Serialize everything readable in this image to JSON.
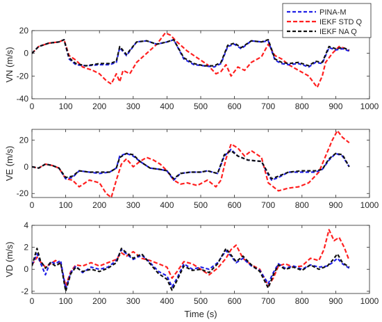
{
  "colors": {
    "pina": "#1f1fe6",
    "ieekf_std": "#ff1f1f",
    "ieekf_na": "#111111"
  },
  "legend": [
    "PINA-M",
    "IEKF STD Q",
    "IEKF NA Q"
  ],
  "chart_data": [
    {
      "type": "line",
      "ylabel": "VN (m/s)",
      "xlabel": "",
      "xlim": [
        0,
        1000
      ],
      "ylim": [
        -40,
        20
      ],
      "xticks": [
        0,
        100,
        200,
        300,
        400,
        500,
        600,
        700,
        800,
        900,
        1000
      ],
      "yticks": [
        -40,
        -20,
        0,
        20
      ],
      "grid": false,
      "legend_position": "top-right",
      "series": [
        {
          "name": "PINA-M",
          "x": [
            0,
            20,
            50,
            80,
            95,
            110,
            130,
            160,
            200,
            230,
            250,
            260,
            280,
            310,
            340,
            370,
            400,
            420,
            450,
            480,
            510,
            540,
            560,
            580,
            600,
            620,
            650,
            680,
            700,
            720,
            740,
            760,
            790,
            820,
            840,
            860,
            880,
            900,
            920,
            940
          ],
          "y": [
            0,
            6,
            9,
            10,
            12,
            -5,
            -10,
            -11,
            -10,
            -10,
            -8,
            5,
            -2,
            10,
            11,
            8,
            10,
            12,
            -5,
            -10,
            -11,
            -12,
            -9,
            6,
            8,
            4,
            11,
            10,
            11,
            -6,
            -9,
            -10,
            -9,
            -12,
            -8,
            -9,
            5,
            3,
            4,
            2
          ]
        },
        {
          "name": "IEKF STD Q",
          "x": [
            0,
            20,
            50,
            80,
            95,
            110,
            130,
            150,
            180,
            200,
            220,
            235,
            250,
            260,
            270,
            290,
            310,
            340,
            370,
            395,
            410,
            430,
            460,
            490,
            520,
            545,
            560,
            575,
            590,
            610,
            630,
            650,
            680,
            700,
            720,
            740,
            760,
            790,
            820,
            845,
            860,
            870,
            890,
            910,
            930,
            940
          ],
          "y": [
            0,
            6,
            9,
            10,
            12,
            -2,
            -6,
            -12,
            -15,
            -18,
            -24,
            -27,
            -18,
            -25,
            -15,
            -18,
            -8,
            0,
            8,
            18,
            16,
            10,
            2,
            -4,
            -10,
            -18,
            -16,
            -10,
            -20,
            -12,
            -15,
            -8,
            -3,
            8,
            -2,
            -5,
            -10,
            -15,
            -20,
            -30,
            -20,
            -8,
            0,
            6,
            4,
            2
          ]
        },
        {
          "name": "IEKF NA Q",
          "x": [
            0,
            20,
            50,
            80,
            95,
            110,
            130,
            160,
            200,
            230,
            250,
            260,
            280,
            310,
            340,
            370,
            400,
            420,
            450,
            480,
            510,
            540,
            560,
            580,
            600,
            620,
            650,
            680,
            700,
            720,
            740,
            760,
            790,
            820,
            840,
            860,
            880,
            900,
            920,
            940
          ],
          "y": [
            0,
            6,
            9,
            10,
            12,
            -4,
            -9,
            -11,
            -9,
            -9,
            -7,
            6,
            -1,
            10,
            11,
            8,
            10,
            12,
            -4,
            -9,
            -11,
            -11,
            -8,
            7,
            9,
            5,
            11,
            10,
            12,
            -5,
            -8,
            -9,
            -8,
            -11,
            -7,
            -8,
            6,
            4,
            5,
            3
          ]
        }
      ]
    },
    {
      "type": "line",
      "ylabel": "VE (m/s)",
      "xlabel": "",
      "xlim": [
        0,
        1000
      ],
      "ylim": [
        -23,
        28
      ],
      "xticks": [
        0,
        100,
        200,
        300,
        400,
        500,
        600,
        700,
        800,
        900,
        1000
      ],
      "yticks": [
        -20,
        0,
        20
      ],
      "grid": false,
      "series": [
        {
          "name": "PINA-M",
          "x": [
            0,
            20,
            40,
            60,
            80,
            100,
            120,
            140,
            170,
            200,
            230,
            250,
            260,
            280,
            300,
            320,
            350,
            380,
            400,
            420,
            440,
            470,
            500,
            520,
            550,
            570,
            590,
            610,
            640,
            680,
            700,
            710,
            730,
            760,
            800,
            840,
            860,
            880,
            900,
            920,
            940
          ],
          "y": [
            0,
            -1,
            2,
            1,
            -1,
            -9,
            -8,
            -3,
            -4,
            -5,
            -4,
            -1,
            8,
            10,
            8,
            4,
            -1,
            -2,
            -3,
            -10,
            -5,
            -4,
            -4,
            -3,
            -5,
            8,
            13,
            8,
            5,
            4,
            -6,
            -10,
            -8,
            -4,
            -4,
            -4,
            -2,
            5,
            10,
            8,
            0
          ]
        },
        {
          "name": "IEKF STD Q",
          "x": [
            0,
            20,
            40,
            60,
            80,
            100,
            120,
            140,
            170,
            200,
            220,
            235,
            250,
            265,
            280,
            300,
            320,
            340,
            360,
            380,
            400,
            420,
            440,
            460,
            490,
            520,
            545,
            560,
            575,
            590,
            610,
            630,
            650,
            680,
            700,
            715,
            730,
            760,
            790,
            820,
            850,
            870,
            890,
            905,
            920,
            940
          ],
          "y": [
            0,
            -1,
            2,
            1,
            -1,
            -9,
            -10,
            -15,
            -10,
            -12,
            -20,
            -23,
            -10,
            2,
            6,
            0,
            4,
            7,
            5,
            2,
            -3,
            -10,
            -13,
            -12,
            -14,
            -10,
            -15,
            -10,
            6,
            17,
            14,
            8,
            12,
            7,
            -12,
            -15,
            -18,
            -16,
            -15,
            -12,
            -4,
            8,
            20,
            27,
            22,
            18
          ]
        },
        {
          "name": "IEKF NA Q",
          "x": [
            0,
            20,
            40,
            60,
            80,
            100,
            120,
            140,
            170,
            200,
            230,
            250,
            260,
            280,
            300,
            320,
            350,
            380,
            400,
            420,
            440,
            470,
            500,
            520,
            550,
            570,
            590,
            610,
            640,
            680,
            700,
            710,
            730,
            760,
            800,
            840,
            860,
            880,
            900,
            920,
            940
          ],
          "y": [
            0,
            -1,
            2,
            1,
            -1,
            -8,
            -7,
            -3,
            -4,
            -4,
            -4,
            -1,
            7,
            10,
            9,
            4,
            -1,
            -2,
            -3,
            -9,
            -5,
            -4,
            -4,
            -3,
            -5,
            9,
            12,
            8,
            5,
            4,
            -5,
            -9,
            -7,
            -4,
            -3,
            -3,
            -2,
            6,
            10,
            9,
            0
          ]
        }
      ]
    },
    {
      "type": "line",
      "ylabel": "VD (m/s)",
      "xlabel": "Time (s)",
      "xlim": [
        0,
        1000
      ],
      "ylim": [
        -2.2,
        4
      ],
      "xticks": [
        0,
        100,
        200,
        300,
        400,
        500,
        600,
        700,
        800,
        900,
        1000
      ],
      "yticks": [
        -2,
        0,
        2,
        4
      ],
      "grid": false,
      "series": [
        {
          "name": "PINA-M",
          "x": [
            0,
            15,
            25,
            40,
            55,
            70,
            85,
            100,
            115,
            130,
            150,
            175,
            200,
            225,
            250,
            265,
            280,
            300,
            325,
            350,
            375,
            400,
            415,
            430,
            450,
            475,
            500,
            525,
            550,
            575,
            590,
            605,
            625,
            650,
            675,
            700,
            715,
            730,
            750,
            775,
            800,
            825,
            850,
            875,
            890,
            905,
            920,
            940
          ],
          "y": [
            0.4,
            1.4,
            0.6,
            -0.5,
            0.7,
            0.5,
            0.8,
            -1.8,
            -0.3,
            0.3,
            -0.3,
            0.2,
            0.0,
            0.2,
            0.8,
            1.8,
            1.4,
            0.9,
            1.3,
            0.6,
            -0.2,
            -0.6,
            -1.6,
            -0.8,
            0.5,
            0.0,
            0.2,
            0.0,
            0.6,
            1.7,
            1.2,
            0.6,
            1.0,
            0.3,
            -0.1,
            -1.3,
            -0.3,
            0.5,
            0.1,
            0.3,
            0.0,
            0.4,
            0.2,
            0.3,
            0.6,
            1.0,
            0.5,
            0.1
          ]
        },
        {
          "name": "IEKF STD Q",
          "x": [
            0,
            15,
            25,
            40,
            55,
            70,
            85,
            100,
            115,
            130,
            150,
            175,
            200,
            225,
            250,
            265,
            280,
            300,
            325,
            350,
            375,
            400,
            415,
            430,
            450,
            475,
            500,
            525,
            550,
            575,
            590,
            605,
            625,
            650,
            675,
            700,
            715,
            730,
            750,
            775,
            800,
            825,
            850,
            865,
            880,
            895,
            910,
            925,
            940
          ],
          "y": [
            0.4,
            1.1,
            0.7,
            0.2,
            0.5,
            0.8,
            0.5,
            -1.5,
            -0.2,
            0.4,
            0.3,
            0.6,
            0.3,
            0.6,
            0.9,
            1.5,
            1.2,
            1.6,
            1.0,
            0.8,
            0.5,
            0.2,
            -0.8,
            -0.2,
            0.7,
            0.5,
            0.0,
            -0.5,
            0.1,
            1.0,
            1.8,
            2.2,
            1.0,
            0.4,
            0.0,
            -1.5,
            -0.8,
            0.3,
            0.5,
            0.2,
            0.3,
            1.0,
            0.8,
            1.8,
            3.6,
            2.6,
            2.9,
            2.0,
            0.8
          ]
        },
        {
          "name": "IEKF NA Q",
          "x": [
            0,
            15,
            25,
            40,
            55,
            70,
            85,
            100,
            115,
            130,
            150,
            175,
            200,
            225,
            250,
            265,
            280,
            300,
            325,
            350,
            375,
            400,
            415,
            430,
            450,
            475,
            500,
            525,
            550,
            575,
            590,
            605,
            625,
            650,
            675,
            700,
            715,
            730,
            750,
            775,
            800,
            825,
            850,
            875,
            890,
            905,
            920,
            940
          ],
          "y": [
            0.3,
            1.9,
            0.8,
            0.1,
            0.6,
            0.3,
            0.6,
            -2.0,
            -0.4,
            0.2,
            -0.2,
            0.0,
            -0.2,
            0.1,
            0.6,
            1.9,
            1.5,
            1.0,
            1.4,
            0.5,
            -0.4,
            -0.9,
            -1.9,
            -1.0,
            0.3,
            -0.1,
            0.0,
            -0.3,
            0.5,
            1.9,
            1.3,
            0.7,
            1.2,
            0.4,
            -0.2,
            -1.7,
            -0.5,
            0.4,
            0.0,
            0.2,
            -0.1,
            0.4,
            0.0,
            0.3,
            0.8,
            1.4,
            0.6,
            0.2
          ]
        }
      ]
    }
  ]
}
